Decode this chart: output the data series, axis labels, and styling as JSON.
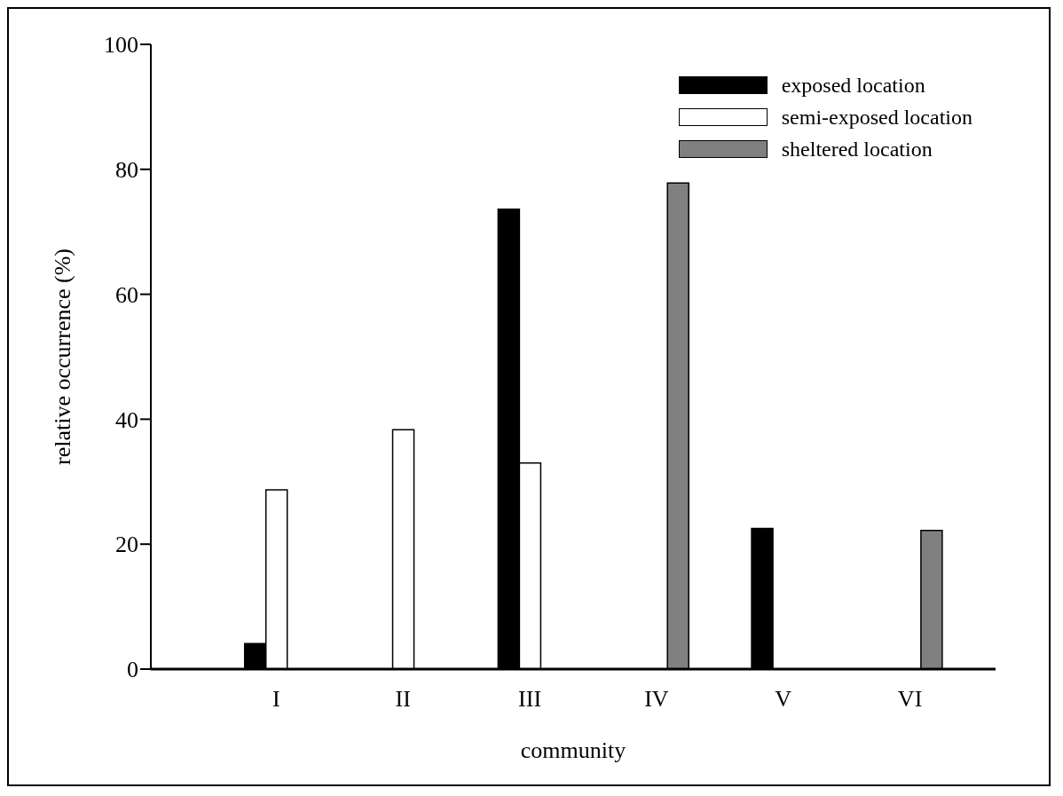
{
  "chart_data": {
    "type": "bar",
    "xlabel": "community",
    "ylabel": "relative occurrence (%)",
    "categories": [
      "I",
      "II",
      "III",
      "IV",
      "V",
      "VI"
    ],
    "series": [
      {
        "name": "exposed location",
        "color": "#000000",
        "values": [
          4.1,
          0,
          73.6,
          0,
          22.5,
          0
        ]
      },
      {
        "name": "semi-exposed location",
        "color": "#ffffff",
        "values": [
          28.7,
          38.3,
          33.0,
          0,
          0,
          0
        ]
      },
      {
        "name": "sheltered location",
        "color": "#808080",
        "values": [
          0,
          0,
          0,
          77.8,
          0,
          22.2
        ]
      }
    ],
    "ylim": [
      0,
      100
    ],
    "yticks": [
      0,
      20,
      40,
      60,
      80,
      100
    ],
    "grid": false,
    "legend": "top right"
  }
}
